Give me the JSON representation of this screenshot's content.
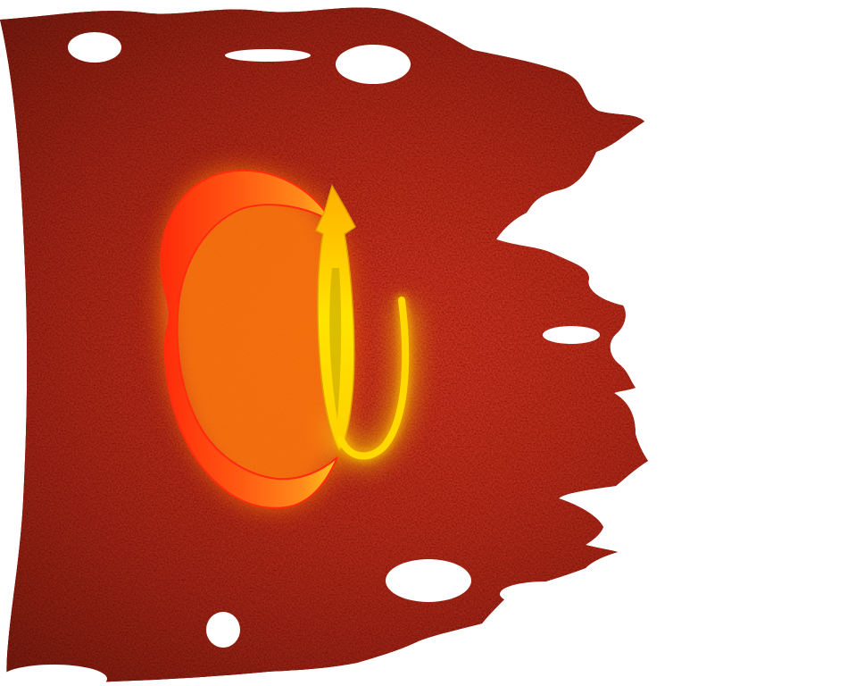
{
  "artwork": {
    "description_name": "torn-red-banner-with-glowing-letter",
    "colors": {
      "background": "#ffffff",
      "banner_dark": "#3a0503",
      "banner_mid": "#7a0d08",
      "banner_light": "#9a1a10",
      "glyph_orange": "#ff4a10",
      "glyph_red": "#e8200a",
      "glyph_yellow": "#ffe000",
      "glyph_glow": "#ff8a20"
    },
    "glyph": "ɑ"
  }
}
